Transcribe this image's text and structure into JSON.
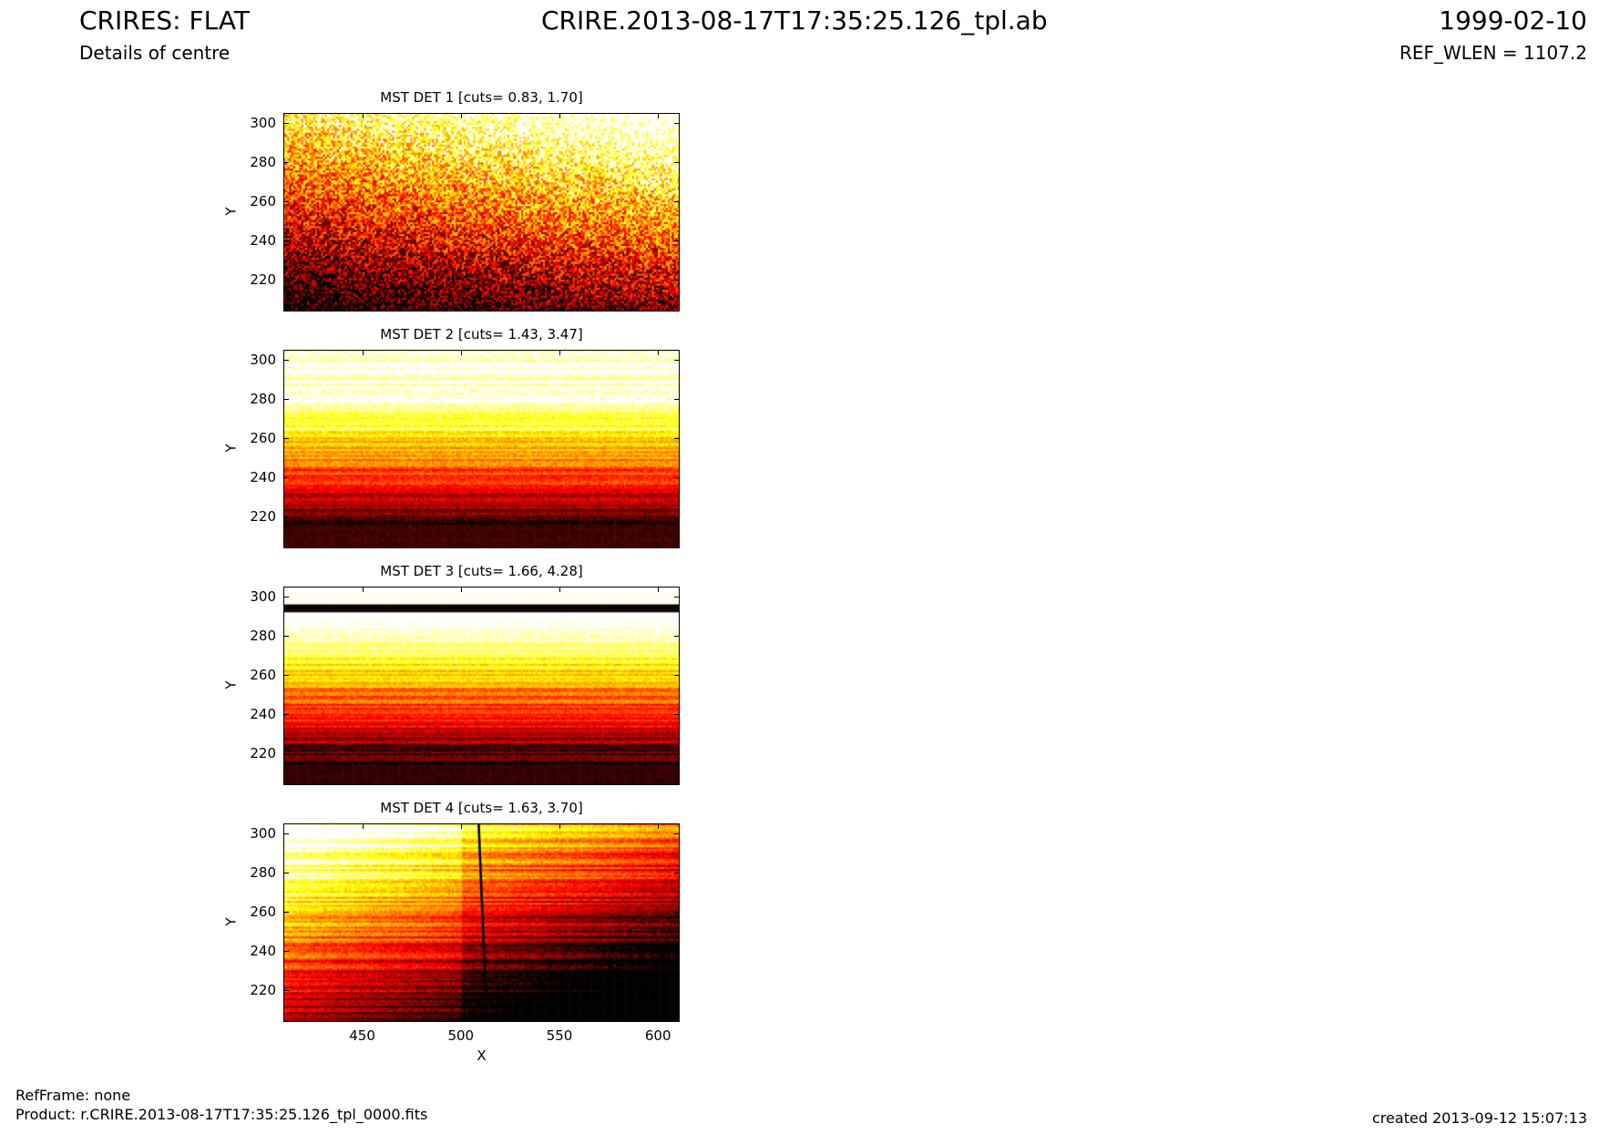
{
  "header": {
    "left_title": "CRIRES: FLAT",
    "left_subtitle": "Details of centre",
    "center_title": "CRIRE.2013-08-17T17:35:25.126_tpl.ab",
    "right_title": "1999-02-10",
    "right_subtitle": "REF_WLEN = 1107.2"
  },
  "footer": {
    "refframe": "RefFrame: none",
    "product": "Product: r.CRIRE.2013-08-17T17:35:25.126_tpl_0000.fits",
    "created": "created 2013-09-12 15:07:13"
  },
  "chart_data": [
    {
      "type": "heatmap",
      "title": "MST DET 1 [cuts= 0.83, 1.70]",
      "ylabel": "Y",
      "xlabel": "",
      "xlim": [
        410,
        611
      ],
      "ylim": [
        204,
        305
      ],
      "yticks": [
        220,
        240,
        260,
        280,
        300
      ],
      "xticks": [],
      "colormap": "hot",
      "cuts": [
        0.83,
        1.7
      ]
    },
    {
      "type": "heatmap",
      "title": "MST DET 2 [cuts= 1.43, 3.47]",
      "ylabel": "Y",
      "xlabel": "",
      "xlim": [
        410,
        611
      ],
      "ylim": [
        204,
        305
      ],
      "yticks": [
        220,
        240,
        260,
        280,
        300
      ],
      "xticks": [],
      "colormap": "hot",
      "cuts": [
        1.43,
        3.47
      ]
    },
    {
      "type": "heatmap",
      "title": "MST DET 3 [cuts= 1.66, 4.28]",
      "ylabel": "Y",
      "xlabel": "",
      "xlim": [
        410,
        611
      ],
      "ylim": [
        204,
        305
      ],
      "yticks": [
        220,
        240,
        260,
        280,
        300
      ],
      "xticks": [],
      "colormap": "hot",
      "cuts": [
        1.66,
        4.28
      ]
    },
    {
      "type": "heatmap",
      "title": "MST DET 4 [cuts= 1.63, 3.70]",
      "ylabel": "Y",
      "xlabel": "X",
      "xlim": [
        410,
        611
      ],
      "ylim": [
        204,
        305
      ],
      "yticks": [
        220,
        240,
        260,
        280,
        300
      ],
      "xticks": [
        450,
        500,
        550,
        600
      ],
      "colormap": "hot",
      "cuts": [
        1.63,
        3.7
      ]
    }
  ]
}
